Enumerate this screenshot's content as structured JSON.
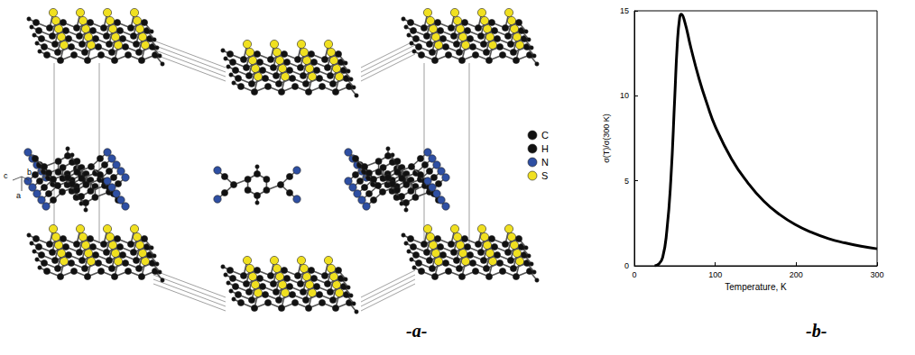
{
  "figure": {
    "panel_a": {
      "label": "-a-",
      "legend": [
        {
          "symbol": "C",
          "color": "#111111"
        },
        {
          "symbol": "H",
          "color": "#111111"
        },
        {
          "symbol": "N",
          "color": "#2e4fa3"
        },
        {
          "symbol": "S",
          "color": "#f0e020"
        }
      ],
      "axis_labels": [
        "c",
        "b",
        "a"
      ]
    },
    "panel_b": {
      "label": "-b-"
    }
  },
  "chart_data": {
    "type": "line",
    "x": [
      25,
      30,
      35,
      40,
      45,
      50,
      53,
      56,
      58,
      62,
      70,
      80,
      90,
      100,
      120,
      140,
      160,
      180,
      200,
      220,
      240,
      260,
      280,
      300
    ],
    "values": [
      0,
      0.1,
      0.5,
      2,
      5,
      10,
      13,
      14.6,
      14.8,
      14.4,
      12.8,
      11,
      9.5,
      8.2,
      6.3,
      4.9,
      3.8,
      3.0,
      2.4,
      1.95,
      1.6,
      1.35,
      1.15,
      1.0
    ],
    "xlabel": "Temperature, K",
    "ylabel": "σ(T)/σ(300 K)",
    "xlim": [
      0,
      300
    ],
    "ylim": [
      0,
      15
    ],
    "xticks": [
      0,
      100,
      200,
      300
    ],
    "yticks": [
      0,
      5,
      10,
      15
    ],
    "color": "#000000",
    "grid": false
  }
}
